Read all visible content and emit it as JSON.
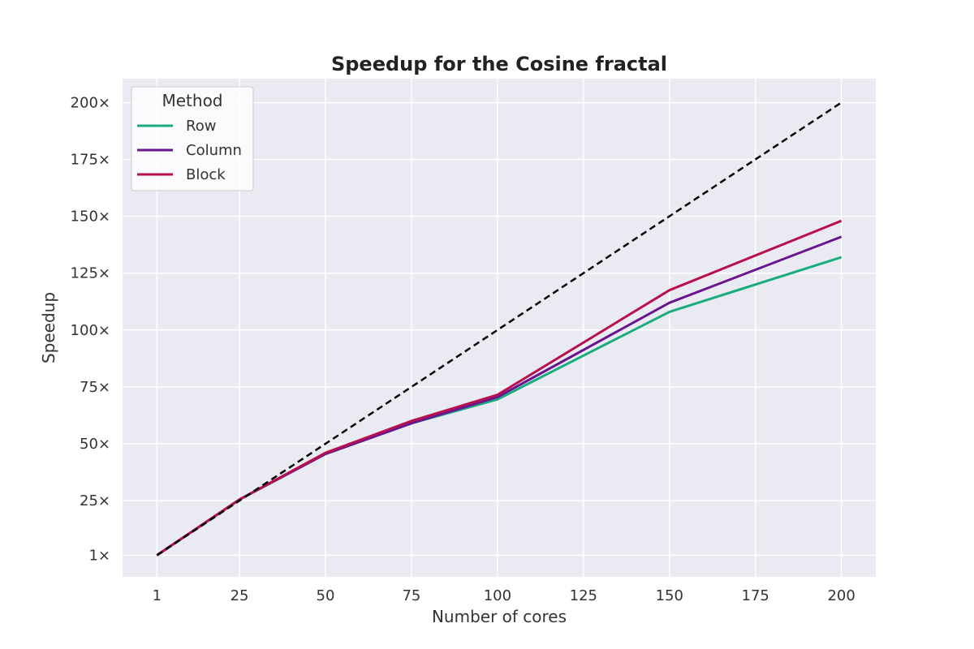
{
  "chart_data": {
    "type": "line",
    "title": "Speedup for the Cosine fractal",
    "xlabel": "Number of cores",
    "ylabel": "Speedup",
    "x": [
      1,
      25,
      50,
      75,
      100,
      150,
      200
    ],
    "x_ticks": [
      1,
      25,
      50,
      75,
      100,
      125,
      150,
      175,
      200
    ],
    "x_tick_labels": [
      "1",
      "25",
      "50",
      "75",
      "100",
      "125",
      "150",
      "175",
      "200"
    ],
    "y_ticks": [
      1,
      25,
      50,
      75,
      100,
      125,
      150,
      175,
      200
    ],
    "y_tick_labels": [
      "1×",
      "25×",
      "50×",
      "75×",
      "100×",
      "125×",
      "150×",
      "175×",
      "200×"
    ],
    "xlim": [
      -9,
      210
    ],
    "ylim": [
      -8.5,
      210.5
    ],
    "grid": true,
    "legend": {
      "title": "Method",
      "position": "top-left"
    },
    "series": [
      {
        "name": "Row",
        "color": "#1aab7f",
        "values": [
          1,
          25.5,
          45.5,
          59,
          69.5,
          108,
          132
        ]
      },
      {
        "name": "Column",
        "color": "#6a1590",
        "values": [
          1,
          25.5,
          45.5,
          59,
          70.5,
          112,
          141
        ]
      },
      {
        "name": "Block",
        "color": "#b8104f",
        "values": [
          1,
          25.5,
          46,
          60,
          71.5,
          117.5,
          148
        ]
      }
    ],
    "reference_line": {
      "style": "dashed",
      "color": "#000000",
      "x": [
        1,
        200
      ],
      "values": [
        1,
        200
      ]
    }
  }
}
